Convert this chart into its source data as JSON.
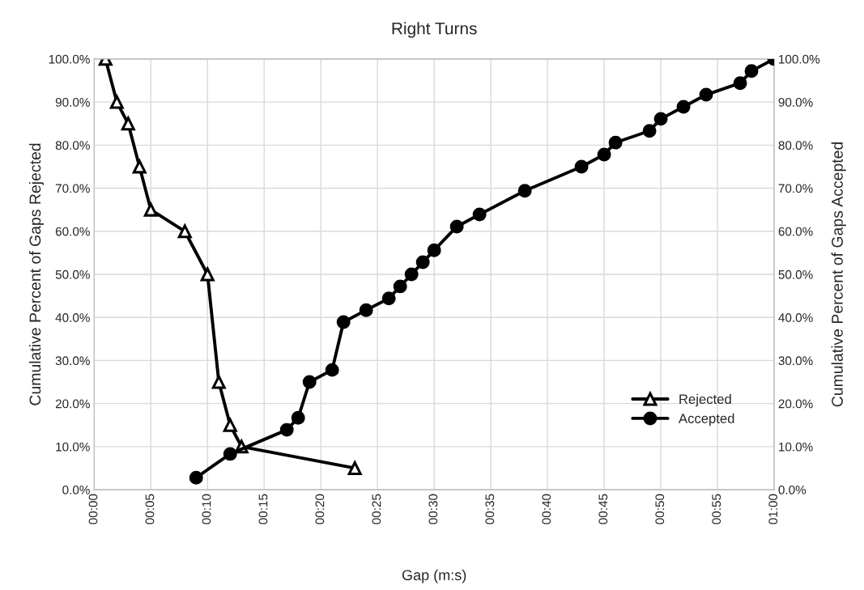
{
  "chart_data": {
    "type": "line",
    "title": "Right Turns",
    "xlabel": "Gap (m:s)",
    "ylabel": "Cumulative Percent of Gaps Rejected",
    "y2label": "Cumulative Percent of Gaps Accepted",
    "xlim": [
      0,
      60
    ],
    "xticks": [
      {
        "value": 0,
        "label": "00:00"
      },
      {
        "value": 5,
        "label": "00:05"
      },
      {
        "value": 10,
        "label": "00:10"
      },
      {
        "value": 15,
        "label": "00:15"
      },
      {
        "value": 20,
        "label": "00:20"
      },
      {
        "value": 25,
        "label": "00:25"
      },
      {
        "value": 30,
        "label": "00:30"
      },
      {
        "value": 35,
        "label": "00:35"
      },
      {
        "value": 40,
        "label": "00:40"
      },
      {
        "value": 45,
        "label": "00:45"
      },
      {
        "value": 50,
        "label": "00:50"
      },
      {
        "value": 55,
        "label": "00:55"
      },
      {
        "value": 60,
        "label": "01:00"
      }
    ],
    "ylim": [
      0,
      100
    ],
    "yticks": [
      {
        "value": 0,
        "label": "0.0%"
      },
      {
        "value": 10,
        "label": "10.0%"
      },
      {
        "value": 20,
        "label": "20.0%"
      },
      {
        "value": 30,
        "label": "30.0%"
      },
      {
        "value": 40,
        "label": "40.0%"
      },
      {
        "value": 50,
        "label": "50.0%"
      },
      {
        "value": 60,
        "label": "60.0%"
      },
      {
        "value": 70,
        "label": "70.0%"
      },
      {
        "value": 80,
        "label": "80.0%"
      },
      {
        "value": 90,
        "label": "90.0%"
      },
      {
        "value": 100,
        "label": "100.0%"
      }
    ],
    "y2lim": [
      0,
      100
    ],
    "y2ticks": [
      {
        "value": 0,
        "label": "0.0%"
      },
      {
        "value": 10,
        "label": "10.0%"
      },
      {
        "value": 20,
        "label": "20.0%"
      },
      {
        "value": 30,
        "label": "30.0%"
      },
      {
        "value": 40,
        "label": "40.0%"
      },
      {
        "value": 50,
        "label": "50.0%"
      },
      {
        "value": 60,
        "label": "60.0%"
      },
      {
        "value": 70,
        "label": "70.0%"
      },
      {
        "value": 80,
        "label": "80.0%"
      },
      {
        "value": 90,
        "label": "90.0%"
      },
      {
        "value": 100,
        "label": "100.0%"
      }
    ],
    "grid": true,
    "legend": "bottom right",
    "line_style": "solid",
    "series": [
      {
        "name": "Rejected",
        "color": "#000000",
        "marker": "triangle",
        "x": [
          1,
          2,
          3,
          4,
          5,
          8,
          10,
          11,
          12,
          13,
          23
        ],
        "values": [
          100,
          90,
          85,
          75,
          65,
          60,
          50,
          25,
          15,
          10,
          5
        ]
      },
      {
        "name": "Accepted",
        "color": "#000000",
        "marker": "circle",
        "axis": "y2",
        "x": [
          9,
          12,
          17,
          18,
          19,
          21,
          22,
          24,
          26,
          27,
          28,
          29,
          30,
          32,
          34,
          38,
          43,
          45,
          46,
          49,
          50,
          52,
          54,
          57,
          58,
          60
        ],
        "values": [
          2.8,
          8.3,
          13.9,
          16.7,
          25,
          27.8,
          38.9,
          41.7,
          44.4,
          47.2,
          50,
          52.8,
          55.6,
          61.1,
          63.9,
          69.4,
          75,
          77.8,
          80.6,
          83.3,
          86.1,
          88.9,
          91.7,
          94.4,
          97.2,
          100
        ]
      }
    ]
  }
}
